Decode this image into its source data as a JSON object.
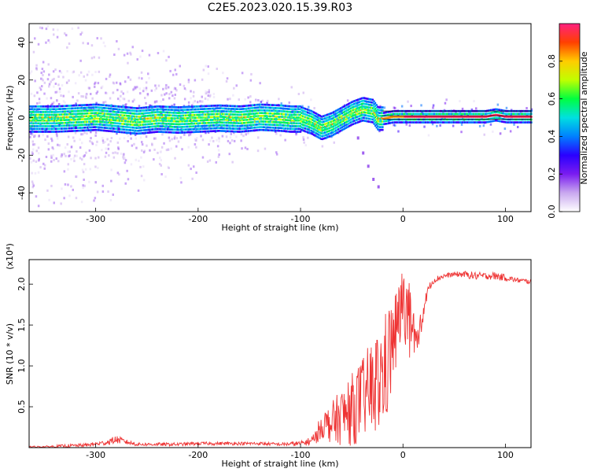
{
  "title": "C2E5.2023.020.15.39.R03",
  "chart_data": [
    {
      "type": "heatmap",
      "xlabel": "Height of straight line (km)",
      "ylabel": "Frequency (Hz)",
      "xlim": [
        -365,
        125
      ],
      "ylim": [
        -50,
        50
      ],
      "xticks": [
        -300,
        -200,
        -100,
        0,
        100
      ],
      "yticks": [
        -40,
        -20,
        0,
        20,
        40
      ],
      "colorbar": {
        "label": "Normalized spectral amplitude",
        "range": [
          0,
          1
        ],
        "ticks": [
          "0.0",
          "0.2",
          "0.4",
          "0.6",
          "0.8"
        ],
        "colors": [
          "#ffffff",
          "#c9a8ef",
          "#7a1cf0",
          "#2a00ff",
          "#0080ff",
          "#00e0e0",
          "#00ff40",
          "#c0ff00",
          "#ffcc00",
          "#ff4000",
          "#ff2080"
        ]
      },
      "ridge": {
        "x": [
          -365,
          -340,
          -320,
          -300,
          -280,
          -260,
          -240,
          -220,
          -200,
          -180,
          -160,
          -140,
          -120,
          -110,
          -100,
          -90,
          -80,
          -70,
          -60,
          -50,
          -40,
          -30,
          -25,
          -20,
          -10,
          0,
          20,
          40,
          60,
          80,
          90,
          100,
          125
        ],
        "y": [
          0,
          0,
          0.5,
          1,
          0,
          -1,
          0,
          -0.5,
          0,
          0.5,
          0,
          1,
          0.5,
          0,
          0,
          -2,
          -5,
          -3,
          0,
          3,
          5,
          4,
          0,
          0,
          1,
          1,
          1,
          1,
          1,
          1,
          2,
          1,
          1
        ]
      },
      "secondary_branch": {
        "x": [
          -45,
          -40,
          -35,
          -30,
          -25
        ],
        "y": [
          -10,
          -18,
          -25,
          -32,
          -36
        ]
      }
    },
    {
      "type": "line",
      "xlabel": "Height of straight line (km)",
      "ylabel": "SNR (10 * v/v)",
      "y_multiplier": "(x10⁴)",
      "xlim": [
        -365,
        125
      ],
      "ylim": [
        0,
        2.3
      ],
      "xticks": [
        -300,
        -200,
        -100,
        0,
        100
      ],
      "yticks": [
        0.5,
        1.0,
        1.5,
        2.0
      ],
      "ytick_labels": [
        "0.5",
        "1.0",
        "1.5",
        "2.0"
      ],
      "color": "#ee3333",
      "series": [
        {
          "x": [
            -365,
            -350,
            -330,
            -310,
            -290,
            -280,
            -270,
            -260,
            -240,
            -220,
            -200,
            -180,
            -160,
            -140,
            -120,
            -100,
            -90,
            -85,
            -80,
            -70,
            -60,
            -50,
            -40,
            -30,
            -20,
            -15,
            -10,
            -5,
            0,
            5,
            10,
            15,
            20,
            25,
            30,
            40,
            50,
            60,
            70,
            80,
            90,
            100,
            110,
            125
          ],
          "values": [
            0.01,
            0.01,
            0.02,
            0.03,
            0.06,
            0.1,
            0.07,
            0.04,
            0.04,
            0.04,
            0.05,
            0.05,
            0.05,
            0.05,
            0.04,
            0.05,
            0.08,
            0.15,
            0.3,
            0.35,
            0.45,
            0.55,
            0.7,
            0.85,
            1.0,
            1.2,
            1.4,
            1.6,
            1.9,
            1.7,
            1.3,
            1.3,
            1.7,
            1.95,
            2.05,
            2.1,
            2.12,
            2.12,
            2.1,
            2.1,
            2.1,
            2.08,
            2.05,
            2.03
          ],
          "spread": [
            0.01,
            0.01,
            0.02,
            0.02,
            0.03,
            0.05,
            0.03,
            0.02,
            0.02,
            0.02,
            0.02,
            0.02,
            0.02,
            0.02,
            0.02,
            0.03,
            0.05,
            0.1,
            0.15,
            0.25,
            0.35,
            0.45,
            0.5,
            0.6,
            0.7,
            0.7,
            0.6,
            0.5,
            0.4,
            0.5,
            0.5,
            0.3,
            0.1,
            0.05,
            0.04,
            0.03,
            0.03,
            0.04,
            0.05,
            0.04,
            0.05,
            0.04,
            0.03,
            0.03
          ]
        }
      ]
    }
  ]
}
